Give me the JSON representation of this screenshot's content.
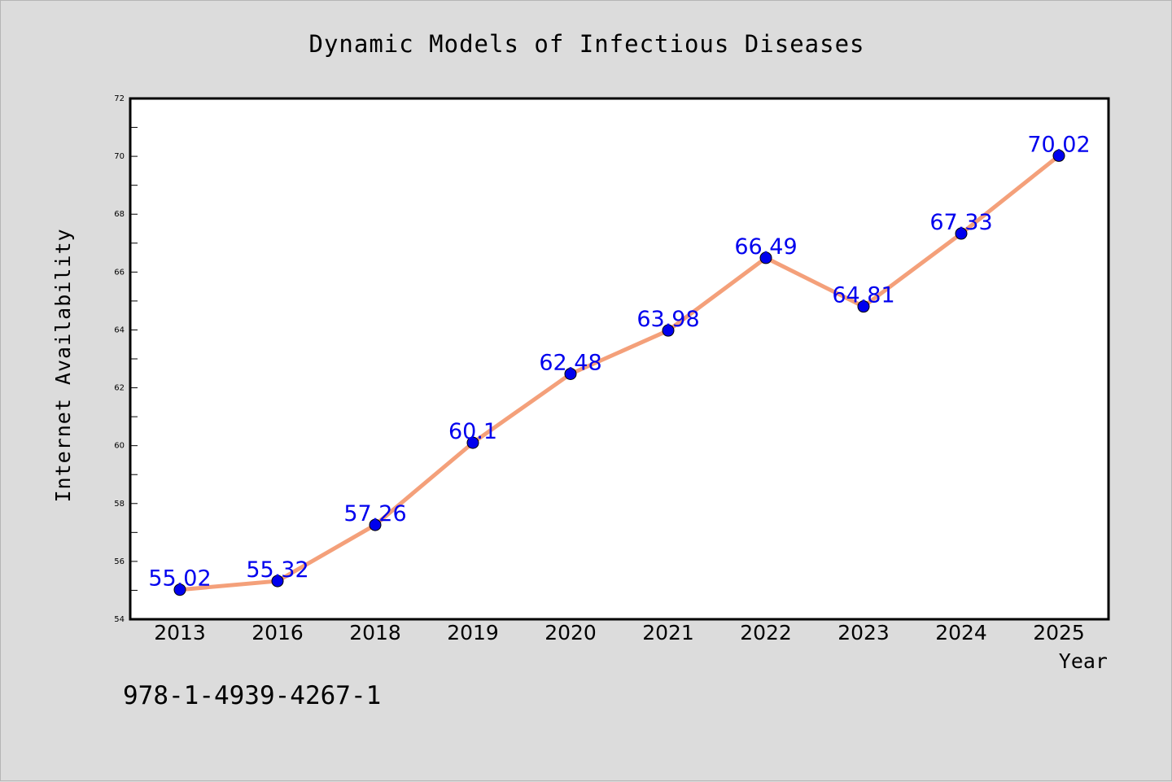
{
  "chart_data": {
    "type": "line",
    "title": "Dynamic Models of Infectious Diseases",
    "xlabel": "Year",
    "ylabel": "Internet Availability",
    "categories": [
      "2013",
      "2016",
      "2018",
      "2019",
      "2020",
      "2021",
      "2022",
      "2023",
      "2024",
      "2025"
    ],
    "series": [
      {
        "values": [
          55.02,
          55.32,
          57.26,
          60.1,
          62.48,
          63.98,
          66.49,
          64.81,
          67.33,
          70.02
        ],
        "labels": [
          "55.02",
          "55.32",
          "57.26",
          "60.1",
          "62.48",
          "63.98",
          "66.49",
          "64.81",
          "67.33",
          "70.02"
        ],
        "line_color": "#f4a07a",
        "marker_color": "#0000ee",
        "label_color": "#0000ee"
      }
    ],
    "ylim": [
      54,
      72
    ],
    "yticks": [
      "54",
      "56",
      "58",
      "60",
      "62",
      "64",
      "66",
      "68",
      "70",
      "72"
    ],
    "grid": false,
    "legend": "none"
  },
  "annotation": "978-1-4939-4267-1",
  "colors": {
    "background": "#dcdcdc",
    "plot_background": "#ffffff",
    "axis": "#000000"
  }
}
